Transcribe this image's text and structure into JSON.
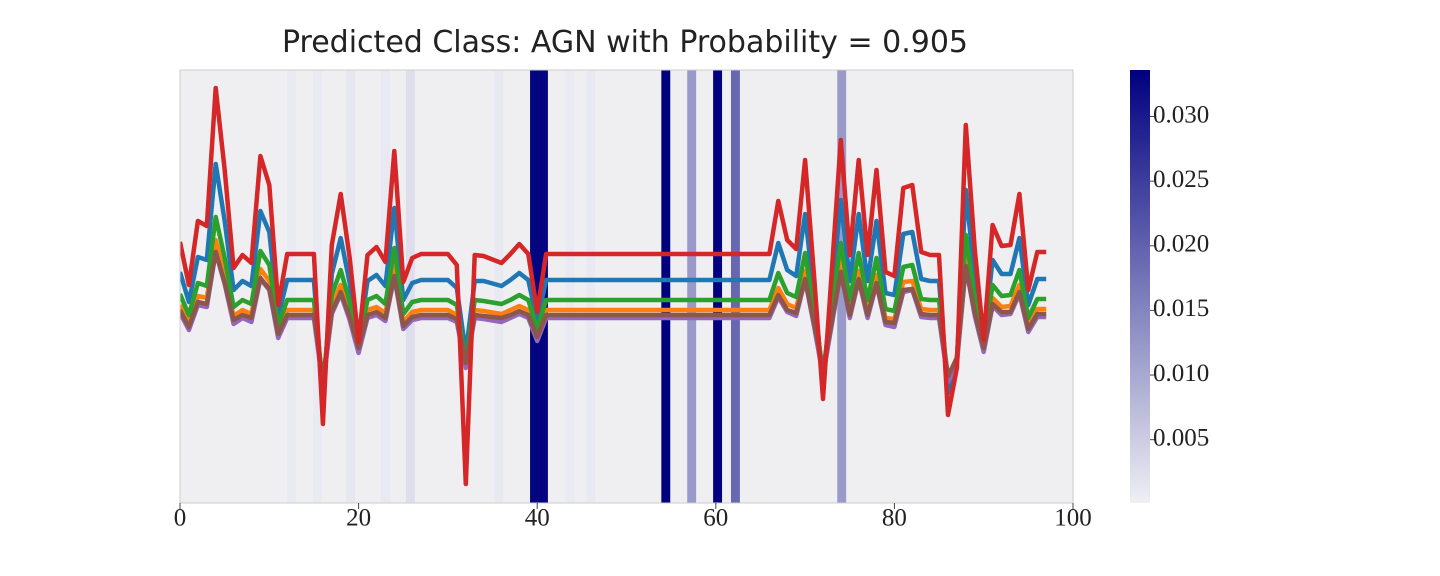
{
  "chart_data": {
    "type": "line",
    "title": "Predicted Class: AGN with Probability = 0.905",
    "x": [
      0,
      1,
      2,
      3,
      4,
      5,
      6,
      7,
      8,
      9,
      10,
      11,
      12,
      15,
      16,
      17,
      18,
      19,
      20,
      21,
      22,
      23,
      24,
      25,
      26,
      27,
      30,
      31,
      32,
      33,
      34,
      36,
      37,
      38,
      39,
      40,
      41,
      66,
      67,
      68,
      69,
      70,
      71,
      72,
      74,
      75,
      76,
      77,
      78,
      79,
      80,
      81,
      82,
      83,
      84,
      85,
      86,
      87,
      88,
      89,
      90,
      91,
      92,
      93,
      94,
      95,
      96,
      97
    ],
    "series": [
      {
        "color": "#1f77b4",
        "values": [
          231,
          201,
          246,
          243,
          339,
          282,
          213,
          222,
          217,
          292,
          271,
          187,
          223,
          223,
          104,
          229,
          265,
          220,
          161,
          222,
          228,
          217,
          295,
          203,
          220,
          223,
          223,
          215,
          150,
          222,
          222,
          217,
          223,
          230,
          223,
          182,
          223,
          223,
          260,
          233,
          227,
          289,
          208,
          122,
          303,
          222,
          289,
          222,
          282,
          210,
          208,
          269,
          271,
          224,
          222,
          222,
          110,
          143,
          313,
          226,
          163,
          243,
          229,
          229,
          265,
          198,
          224,
          224
        ]
      },
      {
        "color": "#ff7f0e",
        "values": [
          198,
          180,
          207,
          205,
          263,
          228,
          187,
          193,
          189,
          234,
          222,
          172,
          193,
          193,
          122,
          197,
          218,
          191,
          156,
          193,
          196,
          190,
          236,
          181,
          191,
          193,
          193,
          188,
          138,
          193,
          192,
          189,
          193,
          197,
          193,
          169,
          193,
          193,
          215,
          199,
          195,
          232,
          184,
          132,
          241,
          193,
          232,
          193,
          228,
          185,
          184,
          221,
          222,
          194,
          193,
          193,
          125,
          145,
          247,
          195,
          157,
          205,
          196,
          197,
          218,
          178,
          194,
          194
        ]
      },
      {
        "color": "#2ca02c",
        "values": [
          209,
          188,
          220,
          217,
          286,
          245,
          196,
          203,
          199,
          252,
          238,
          178,
          203,
          203,
          118,
          208,
          233,
          201,
          159,
          203,
          207,
          199,
          255,
          189,
          201,
          203,
          203,
          198,
          140,
          203,
          202,
          199,
          203,
          208,
          203,
          174,
          203,
          203,
          230,
          210,
          206,
          250,
          193,
          131,
          260,
          203,
          250,
          203,
          245,
          194,
          192,
          236,
          238,
          204,
          203,
          203,
          123,
          146,
          268,
          205,
          160,
          218,
          207,
          208,
          233,
          185,
          204,
          204
        ]
      },
      {
        "color": "#9467bd",
        "values": [
          190,
          173,
          198,
          196,
          251,
          219,
          179,
          185,
          181,
          224,
          213,
          165,
          185,
          185,
          117,
          189,
          209,
          183,
          150,
          185,
          188,
          182,
          226,
          174,
          183,
          185,
          185,
          181,
          135,
          185,
          184,
          181,
          185,
          189,
          185,
          162,
          185,
          185,
          206,
          191,
          187,
          223,
          177,
          127,
          231,
          185,
          223,
          185,
          219,
          178,
          176,
          211,
          213,
          186,
          185,
          185,
          121,
          139,
          237,
          187,
          151,
          197,
          188,
          189,
          209,
          171,
          186,
          186
        ]
      },
      {
        "color": "#8c564b",
        "values": [
          193,
          176,
          201,
          199,
          251,
          220,
          183,
          188,
          185,
          225,
          214,
          169,
          188,
          188,
          123,
          191,
          211,
          186,
          155,
          188,
          191,
          185,
          227,
          177,
          186,
          188,
          188,
          184,
          140,
          188,
          187,
          185,
          188,
          192,
          188,
          166,
          188,
          188,
          208,
          193,
          190,
          224,
          180,
          133,
          231,
          188,
          224,
          188,
          220,
          181,
          180,
          213,
          214,
          189,
          188,
          188,
          127,
          145,
          237,
          190,
          155,
          199,
          191,
          191,
          211,
          174,
          189,
          189
        ]
      },
      {
        "color": "#d62728",
        "values": [
          261,
          218,
          282,
          277,
          415,
          333,
          235,
          248,
          240,
          347,
          318,
          198,
          249,
          249,
          79,
          258,
          309,
          245,
          161,
          248,
          256,
          241,
          352,
          221,
          245,
          249,
          249,
          238,
          19,
          248,
          247,
          240,
          249,
          259,
          249,
          191,
          249,
          249,
          302,
          263,
          254,
          343,
          228,
          104,
          363,
          248,
          343,
          248,
          333,
          231,
          227,
          315,
          318,
          251,
          248,
          248,
          88,
          135,
          378,
          253,
          163,
          278,
          257,
          258,
          309,
          213,
          251,
          251
        ]
      }
    ],
    "xlim": [
      0,
      100
    ],
    "xticks": [
      0,
      20,
      40,
      60,
      80,
      100
    ],
    "ylim": [
      0,
      433
    ],
    "attribution": {
      "x": [
        12.0,
        14.9,
        18.6,
        22.5,
        25.3,
        35.2,
        39.2,
        40.2,
        43.2,
        45.5,
        53.9,
        56.8,
        59.7,
        61.7,
        73.6
      ],
      "values": [
        0.0008,
        0.0008,
        0.0012,
        0.001,
        0.0025,
        0.001,
        0.033,
        0.033,
        0.0008,
        0.001,
        0.0335,
        0.012,
        0.0335,
        0.019,
        0.012
      ]
    },
    "colorbar": {
      "clim": [
        0.0001,
        0.0336
      ],
      "cmap": [
        "#efeff4",
        "#00007f"
      ],
      "ticks": [
        0.005,
        {
          "value": 0.01,
          "label": "0.010"
        },
        0.015,
        {
          "value": 0.02,
          "label": "0.020"
        },
        0.025,
        {
          "value": 0.03,
          "label": "0.030"
        }
      ]
    }
  }
}
